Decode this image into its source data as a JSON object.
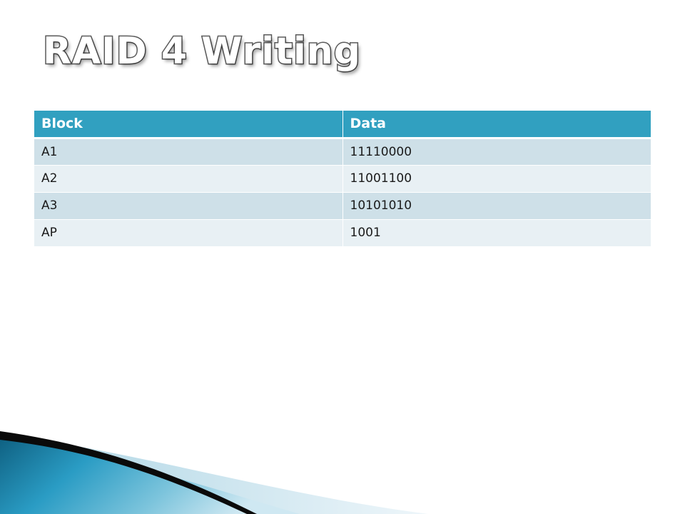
{
  "slide": {
    "title": "RAID 4 Writing"
  },
  "table": {
    "headers": [
      "Block",
      "Data"
    ],
    "rows": [
      [
        "A1",
        "11110000"
      ],
      [
        "A2",
        "11001100"
      ],
      [
        "A3",
        "10101010"
      ],
      [
        "AP",
        "1001"
      ]
    ]
  },
  "theme": {
    "header_color": "#31a0c0",
    "row_odd_color": "#cee0e8",
    "row_even_color": "#e8f0f4"
  }
}
